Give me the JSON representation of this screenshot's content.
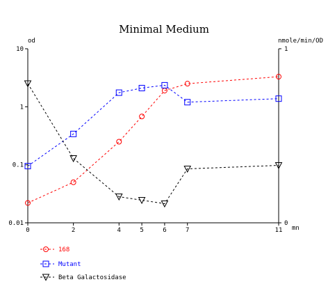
{
  "chart_data": {
    "type": "line",
    "title": "Minimal Medium",
    "x_unit_label": "mn",
    "y_left_label": "od",
    "y_right_label": "nmole/min/OD",
    "x_ticks": [
      0,
      2,
      4,
      5,
      6,
      7,
      11
    ],
    "x_tick_labels": [
      "0",
      "2",
      "4",
      "5",
      "6",
      "7",
      "11"
    ],
    "xlim": [
      0,
      11
    ],
    "y_left_scale": "log",
    "y_left_lim": [
      0.01,
      10
    ],
    "y_left_tick_labels": [
      "10",
      "1",
      "0.1",
      "0.01"
    ],
    "y_right_lim": [
      0,
      1
    ],
    "y_right_tick_labels": [
      "1",
      "0"
    ],
    "grid": false,
    "legend_position": "bottom-left",
    "series": [
      {
        "name": "168",
        "color": "#ff0000",
        "marker": "circle",
        "axis": "left",
        "x": [
          0,
          2,
          4,
          5,
          6,
          7,
          11
        ],
        "values": [
          0.022,
          0.05,
          0.25,
          0.68,
          1.9,
          2.5,
          3.3
        ]
      },
      {
        "name": "Mutant",
        "color": "#0000ff",
        "marker": "square",
        "axis": "left",
        "x": [
          0,
          2,
          4,
          5,
          6,
          7,
          11
        ],
        "values": [
          0.095,
          0.34,
          1.75,
          2.1,
          2.35,
          1.2,
          1.38
        ]
      },
      {
        "name": "Beta Galactosidase",
        "color": "#000000",
        "marker": "triangle-down",
        "axis": "right",
        "x": [
          0,
          2,
          4,
          5,
          6,
          7,
          11
        ],
        "values": [
          0.8,
          0.37,
          0.15,
          0.13,
          0.11,
          0.31,
          0.33
        ]
      }
    ]
  }
}
